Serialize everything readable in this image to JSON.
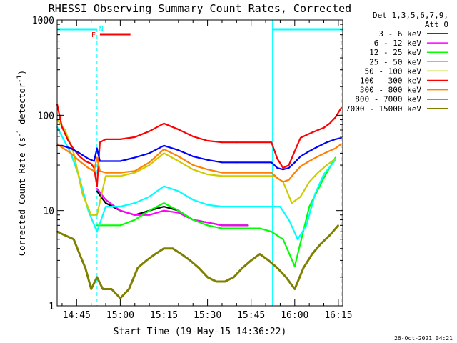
{
  "chart_data": {
    "type": "line",
    "title": "RHESSI Observing Summary Count Rates, Corrected",
    "xlabel": "Start Time (19-May-15 14:36:22)",
    "ylabel_main": "Corrected Count Rate (s",
    "ylabel_sup1": "-1",
    "ylabel_mid": " detector",
    "ylabel_sup2": "-1",
    "ylabel_end": ")",
    "yscale": "log",
    "ylim": [
      1,
      1000
    ],
    "xlim_min": [
      38.3,
      136.5
    ],
    "x_tick_minutes": [
      45,
      60,
      75,
      90,
      105,
      120,
      135
    ],
    "x_tick_labels": [
      "14:45",
      "15:00",
      "15:15",
      "15:30",
      "15:45",
      "16:00",
      "16:15"
    ],
    "y_ticks": [
      1,
      10,
      100,
      1000
    ],
    "y_tick_labels": [
      "1",
      "10",
      "100",
      "1000"
    ],
    "legend_header": [
      "Det 1,3,5,6,7,9,",
      "Att 0"
    ],
    "legend_placement": "right",
    "timestamp": "26-Oct-2021 04:21",
    "flags": [
      {
        "label": "N",
        "color": "#00ffff",
        "x_start": 38.3,
        "x_end": 52.0,
        "x2_start": 112.3,
        "x2_end": 136.5
      },
      {
        "label": "F",
        "color": "#ff0000",
        "x_start": 53.0,
        "x_end": 63.5
      }
    ],
    "eclipse_lines_min": [
      52.0,
      112.3
    ],
    "eclipse_dashed_min": [
      52.0,
      136.5
    ],
    "series": [
      {
        "name": "3 - 6 keV",
        "color": "#000000",
        "x": [
          52,
          55,
          60,
          65,
          70,
          75,
          80,
          85,
          90,
          95,
          100,
          104
        ],
        "values": [
          16,
          12,
          10,
          9,
          10,
          11,
          10,
          8,
          7.5,
          7,
          7,
          7
        ]
      },
      {
        "name": "6 - 12 keV",
        "color": "#ff00ff",
        "x": [
          52,
          55,
          60,
          65,
          70,
          75,
          80,
          85,
          90,
          95,
          100,
          104
        ],
        "values": [
          17,
          13,
          10,
          9,
          9,
          10,
          9.5,
          8,
          7.5,
          7,
          7,
          7
        ]
      },
      {
        "name": "12 - 25 keV",
        "color": "#00ff00",
        "x": [
          52,
          55,
          60,
          65,
          70,
          75,
          80,
          85,
          90,
          95,
          100,
          104,
          108,
          112,
          116,
          120,
          125,
          130,
          134
        ],
        "values": [
          7,
          7,
          7,
          8,
          10,
          12,
          10,
          8,
          7,
          6.5,
          6.5,
          6.5,
          6.5,
          6,
          5,
          2.6,
          11,
          22,
          36
        ]
      },
      {
        "name": "25 - 50 keV",
        "color": "#00ffff",
        "x": [
          38.3,
          40,
          43,
          46,
          49,
          52,
          55,
          60,
          65,
          70,
          75,
          80,
          85,
          90,
          95,
          100,
          105,
          110,
          112,
          115,
          118,
          121,
          124,
          127,
          130,
          134
        ],
        "values": [
          75,
          60,
          40,
          22,
          10,
          6,
          11,
          11,
          12,
          14,
          18,
          16,
          13,
          11.5,
          11,
          11,
          11,
          11,
          11,
          11,
          8,
          5,
          7,
          15,
          24,
          34
        ]
      },
      {
        "name": "50 - 100 keV",
        "color": "#cccc00",
        "x": [
          38.3,
          41,
          44,
          47,
          50,
          52,
          55,
          60,
          65,
          70,
          75,
          80,
          85,
          90,
          95,
          100,
          105,
          110,
          113,
          116,
          119,
          122,
          125,
          128,
          131,
          134
        ],
        "values": [
          90,
          70,
          40,
          15,
          9,
          9,
          23,
          23,
          25,
          30,
          40,
          33,
          27,
          24,
          23,
          23,
          23,
          23,
          23,
          20,
          12,
          14,
          20,
          25,
          30,
          35
        ]
      },
      {
        "name": "100 - 300 keV",
        "color": "#ff0000",
        "x": [
          38.3,
          40,
          42,
          44,
          46,
          48,
          50,
          51,
          52,
          53,
          55,
          60,
          65,
          70,
          75,
          80,
          85,
          90,
          95,
          100,
          105,
          110,
          112,
          114,
          116,
          118,
          120,
          122,
          124,
          126,
          128,
          130,
          132,
          134,
          136
        ],
        "values": [
          130,
          75,
          55,
          44,
          37,
          33,
          31,
          28,
          18,
          52,
          56,
          56,
          59,
          68,
          82,
          71,
          60,
          54,
          52,
          52,
          52,
          52,
          52,
          35,
          28,
          30,
          42,
          58,
          62,
          66,
          70,
          74,
          82,
          95,
          120
        ]
      },
      {
        "name": "300 - 800 keV",
        "color": "#ff8000",
        "x": [
          38.3,
          40,
          43,
          46,
          49,
          51,
          52,
          53,
          55,
          60,
          65,
          70,
          75,
          80,
          85,
          90,
          95,
          100,
          105,
          110,
          112,
          114,
          116,
          118,
          120,
          122,
          125,
          128,
          131,
          134,
          136
        ],
        "values": [
          50,
          46,
          40,
          33,
          28,
          26,
          36,
          26,
          25,
          25,
          26,
          32,
          44,
          37,
          30,
          27,
          25,
          25,
          25,
          25,
          25,
          22,
          20,
          21,
          25,
          29,
          33,
          37,
          41,
          45,
          50
        ]
      },
      {
        "name": "800 - 7000 keV",
        "color": "#0000ff",
        "x": [
          38.3,
          40,
          43,
          46,
          49,
          51,
          52,
          53,
          55,
          60,
          65,
          70,
          75,
          80,
          85,
          90,
          95,
          100,
          105,
          110,
          112,
          114,
          116,
          118,
          120,
          122,
          125,
          128,
          131,
          134,
          136
        ],
        "values": [
          48,
          48,
          45,
          40,
          35,
          33,
          45,
          33,
          33,
          33,
          36,
          40,
          48,
          43,
          37,
          34,
          32,
          32,
          32,
          32,
          32,
          28,
          27,
          28,
          32,
          37,
          42,
          47,
          52,
          56,
          58
        ]
      },
      {
        "name": "7000 - 15000 keV",
        "color": "#808000",
        "x": [
          38.3,
          41,
          44,
          46,
          48,
          50,
          52,
          54,
          57,
          60,
          63,
          66,
          69,
          72,
          75,
          78,
          81,
          84,
          87,
          90,
          93,
          96,
          99,
          102,
          105,
          108,
          111,
          114,
          117,
          120,
          123,
          126,
          129,
          132,
          135
        ],
        "values": [
          6,
          5.5,
          5,
          3.5,
          2.5,
          1.5,
          2,
          1.5,
          1.5,
          1.2,
          1.5,
          2.5,
          3,
          3.5,
          4,
          4,
          3.5,
          3,
          2.5,
          2,
          1.8,
          1.8,
          2,
          2.5,
          3,
          3.5,
          3,
          2.5,
          2,
          1.5,
          2.5,
          3.5,
          4.5,
          5.5,
          7
        ]
      }
    ]
  }
}
